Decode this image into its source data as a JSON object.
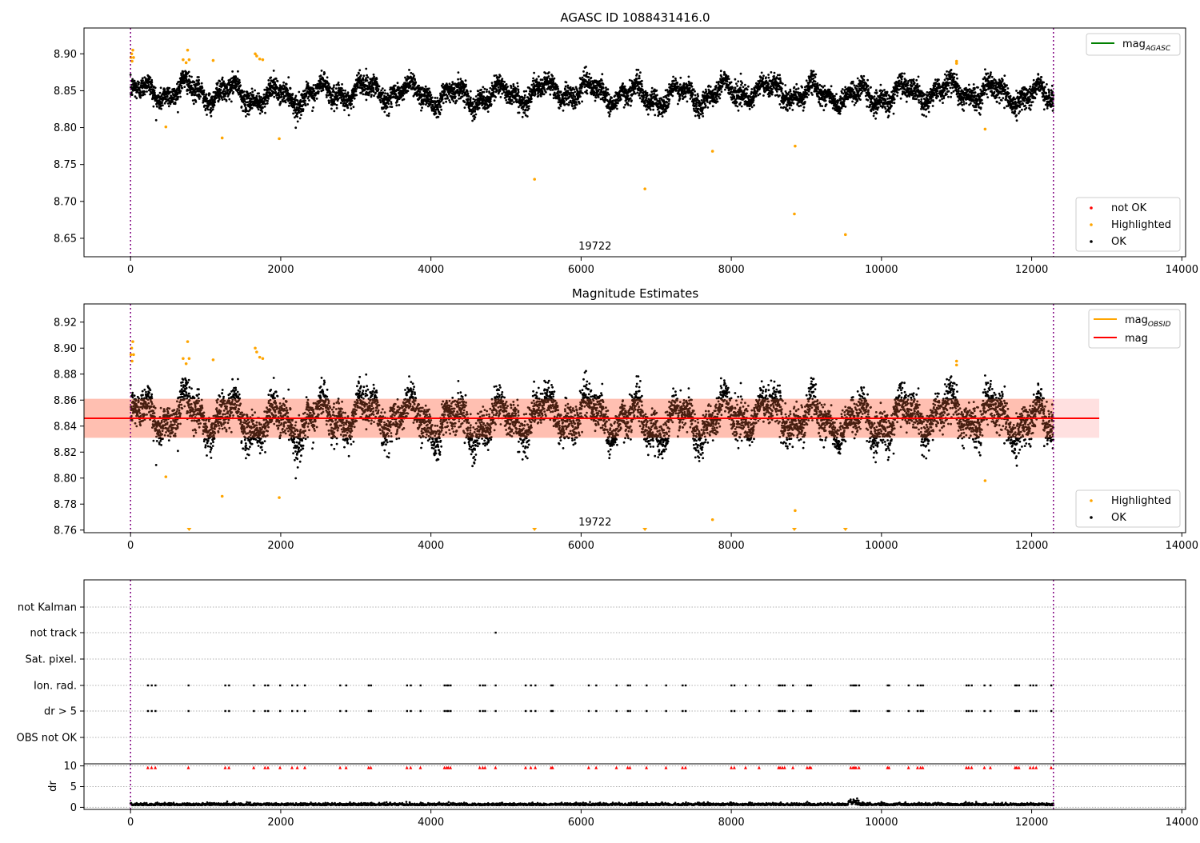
{
  "chart_data": [
    {
      "type": "scatter",
      "title": "AGASC ID 1088431416.0",
      "xlim": [
        -620,
        14050
      ],
      "ylim": [
        8.625,
        8.935
      ],
      "x_ticks": [
        0,
        2000,
        4000,
        6000,
        8000,
        10000,
        12000,
        14000
      ],
      "y_ticks": [
        8.65,
        8.7,
        8.75,
        8.8,
        8.85,
        8.9
      ],
      "obsid_label": {
        "text": "19722",
        "x": 6100
      },
      "vlines": [
        0,
        12290
      ],
      "legend_upper": [
        {
          "label": "mag",
          "sub": "AGASC",
          "style": "line",
          "color": "#008000"
        }
      ],
      "legend_lower": [
        {
          "label": "not OK",
          "style": "dot",
          "color": "#ff0000"
        },
        {
          "label": "Highlighted",
          "style": "dot",
          "color": "#ffa500"
        },
        {
          "label": "OK",
          "style": "dot",
          "color": "#000000"
        }
      ],
      "series": [
        {
          "name": "OK",
          "color": "#000000",
          "x_range": [
            0,
            12290
          ],
          "mean": 8.846,
          "spread": 0.013
        },
        {
          "name": "Highlighted",
          "color": "#ffa500",
          "points": [
            [
              5,
              8.895
            ],
            [
              15,
              8.9
            ],
            [
              20,
              8.89
            ],
            [
              30,
              8.905
            ],
            [
              40,
              8.895
            ],
            [
              470,
              8.801
            ],
            [
              700,
              8.892
            ],
            [
              740,
              8.888
            ],
            [
              760,
              8.905
            ],
            [
              780,
              8.892
            ],
            [
              1100,
              8.891
            ],
            [
              1220,
              8.786
            ],
            [
              1660,
              8.9
            ],
            [
              1680,
              8.897
            ],
            [
              1720,
              8.893
            ],
            [
              1760,
              8.892
            ],
            [
              1980,
              8.785
            ],
            [
              5380,
              8.73
            ],
            [
              6850,
              8.717
            ],
            [
              7750,
              8.768
            ],
            [
              8840,
              8.683
            ],
            [
              8850,
              8.775
            ],
            [
              9520,
              8.655
            ],
            [
              11000,
              8.89
            ],
            [
              11000,
              8.887
            ],
            [
              11380,
              8.798
            ]
          ]
        }
      ]
    },
    {
      "type": "scatter",
      "title": "Magnitude Estimates",
      "xlim": [
        -620,
        14050
      ],
      "ylim": [
        8.758,
        8.934
      ],
      "x_ticks": [
        0,
        2000,
        4000,
        6000,
        8000,
        10000,
        12000,
        14000
      ],
      "y_ticks": [
        8.76,
        8.78,
        8.8,
        8.82,
        8.84,
        8.86,
        8.88,
        8.9,
        8.92
      ],
      "obsid_label": {
        "text": "19722",
        "x": 6100
      },
      "vlines": [
        0,
        12290
      ],
      "band": {
        "x": [
          -620,
          12900
        ],
        "y": [
          8.831,
          8.861
        ],
        "color": "#ff9999"
      },
      "mean_line": {
        "x": [
          -620,
          12900
        ],
        "y": 8.846,
        "color": "#ff0000"
      },
      "legend_upper": [
        {
          "label": "mag",
          "sub": "OBSID",
          "style": "line",
          "color": "#ffa500"
        },
        {
          "label": "mag",
          "sub": "",
          "style": "line",
          "color": "#ff0000"
        }
      ],
      "legend_lower": [
        {
          "label": "Highlighted",
          "style": "dot",
          "color": "#ffa500"
        },
        {
          "label": "OK",
          "style": "dot",
          "color": "#000000"
        }
      ],
      "series": [
        {
          "name": "OK",
          "color": "#000000",
          "x_range": [
            0,
            12290
          ],
          "mean": 8.846,
          "spread": 0.013
        },
        {
          "name": "Highlighted",
          "color": "#ffa500",
          "points": [
            [
              5,
              8.895
            ],
            [
              15,
              8.9
            ],
            [
              20,
              8.89
            ],
            [
              30,
              8.905
            ],
            [
              40,
              8.895
            ],
            [
              470,
              8.801
            ],
            [
              700,
              8.892
            ],
            [
              740,
              8.888
            ],
            [
              760,
              8.905
            ],
            [
              780,
              8.892
            ],
            [
              1100,
              8.891
            ],
            [
              1220,
              8.786
            ],
            [
              1660,
              8.9
            ],
            [
              1680,
              8.897
            ],
            [
              1720,
              8.893
            ],
            [
              1760,
              8.892
            ],
            [
              1980,
              8.785
            ],
            [
              7750,
              8.768
            ],
            [
              8850,
              8.775
            ],
            [
              11000,
              8.89
            ],
            [
              11000,
              8.887
            ],
            [
              11380,
              8.798
            ]
          ]
        },
        {
          "name": "Highlighted (below axis)",
          "color": "#ffa500",
          "marker": "triangle",
          "x": [
            780,
            5380,
            6850,
            8840,
            9520
          ]
        }
      ]
    },
    {
      "type": "scatter",
      "title": "",
      "xlim": [
        -620,
        14050
      ],
      "x_ticks": [
        0,
        2000,
        4000,
        6000,
        8000,
        10000,
        12000,
        14000
      ],
      "vlines": [
        0,
        12290
      ],
      "flag_rows": [
        "not Kalman",
        "not track",
        "Sat. pixel.",
        "Ion. rad.",
        "dr > 5",
        "OBS not OK"
      ],
      "flag_points": {
        "not track": [
          4860
        ],
        "Ion. rad.": [
          230,
          280,
          330,
          770,
          1260,
          1310,
          1640,
          1790,
          1830,
          1990,
          2150,
          2220,
          2320,
          2790,
          2870,
          3170,
          3200,
          3680,
          3730,
          3860,
          4180,
          4210,
          4230,
          4260,
          4650,
          4690,
          4720,
          4860,
          5260,
          5330,
          5390,
          5600,
          5620,
          6100,
          6200,
          6470,
          6620,
          6650,
          6870,
          7130,
          7350,
          7390,
          8000,
          8040,
          8190,
          8370,
          8630,
          8650,
          8680,
          8710,
          8820,
          9010,
          9040,
          9060,
          9590,
          9620,
          9640,
          9660,
          9700,
          10080,
          10100,
          10360,
          10480,
          10520,
          10550,
          11130,
          11160,
          11200,
          11370,
          11450,
          11780,
          11800,
          11830,
          11980,
          12020,
          12060,
          12260
        ],
        "dr > 5": [
          230,
          280,
          330,
          770,
          1260,
          1310,
          1640,
          1790,
          1830,
          1990,
          2150,
          2220,
          2320,
          2790,
          2870,
          3170,
          3200,
          3680,
          3730,
          3860,
          4180,
          4210,
          4230,
          4260,
          4650,
          4690,
          4720,
          4860,
          5260,
          5330,
          5390,
          5600,
          5620,
          6100,
          6200,
          6470,
          6620,
          6650,
          6870,
          7130,
          7350,
          7390,
          8000,
          8040,
          8190,
          8370,
          8630,
          8650,
          8680,
          8710,
          8820,
          9010,
          9040,
          9060,
          9590,
          9620,
          9640,
          9660,
          9700,
          10080,
          10100,
          10360,
          10480,
          10520,
          10550,
          11130,
          11160,
          11200,
          11370,
          11450,
          11780,
          11800,
          11830,
          11980,
          12020,
          12060,
          12260
        ]
      },
      "dr": {
        "ylabel": "dr",
        "ylim": [
          -0.5,
          10.5
        ],
        "y_ticks": [
          0,
          5,
          10
        ],
        "typical": 0.5,
        "red_markers_y": 10
      }
    }
  ]
}
